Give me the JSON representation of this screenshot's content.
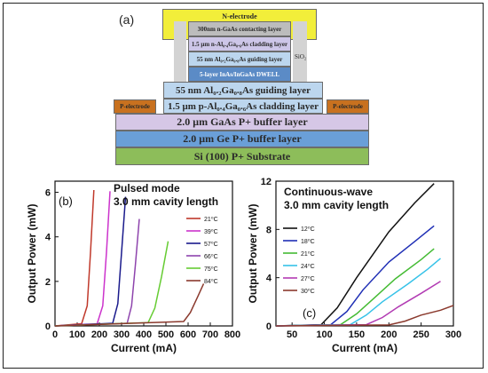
{
  "structure": {
    "panel_label": "(a)",
    "sio2_label": "SiO₂",
    "n_electrode": "N-electrode",
    "p_electrode_left": "P-electrode",
    "p_electrode_right": "P-electrode",
    "layers": {
      "contact": "300nm n-GaAs contacting layer",
      "n_clad": "1.5 μm n-Al₀.₄Ga₀.₆As cladding layer",
      "guide_top": "55 nm Al₀.₂Ga₀.₈As guiding layer",
      "dwell": "5-layer InAs/InGaAs DWELL",
      "guide_bottom": "55 nm Al₀.₂Ga₀.₈As guiding layer",
      "p_clad": "1.5 μm p-Al₀.₄Ga₀.₆As cladding layer",
      "gaas_buffer": "2.0 μm GaAs P+ buffer layer",
      "ge_buffer": "2.0 μm Ge P+ buffer layer",
      "substrate": "Si (100) P+ Substrate"
    },
    "colors": {
      "electrode": "#f2ee3a",
      "p_electrode": "#c8711f",
      "contact": "#bcbcbc",
      "n_clad": "#cdc6e8",
      "guide": "#bcd6ee",
      "dwell": "#5b8bc6",
      "gaas_buffer": "#d6c7e6",
      "ge_buffer": "#6a9fd8",
      "substrate": "#8dbd5a"
    }
  },
  "chart_data": [
    {
      "type": "line",
      "panel_label": "(b)",
      "title_lines": [
        "Pulsed mode",
        "3.0 mm cavity length"
      ],
      "xlabel": "Current (mA)",
      "ylabel": "Output Power (mW)",
      "xlim": [
        0,
        800
      ],
      "ylim": [
        0,
        6.5
      ],
      "xticks": [
        0,
        100,
        200,
        300,
        400,
        500,
        600,
        700,
        800
      ],
      "yticks": [
        0,
        2,
        4,
        6
      ],
      "legend_position": "right",
      "series": [
        {
          "name": "21⁰C",
          "color": "#c0392b",
          "x": [
            0,
            120,
            145,
            160,
            175
          ],
          "y": [
            0,
            0.1,
            0.9,
            3.3,
            6.1
          ]
        },
        {
          "name": "39⁰C",
          "color": "#cc33cc",
          "x": [
            0,
            190,
            215,
            232,
            248
          ],
          "y": [
            0,
            0.1,
            0.9,
            3.3,
            6.05
          ]
        },
        {
          "name": "57⁰C",
          "color": "#1a1a8c",
          "x": [
            0,
            260,
            283,
            300,
            318
          ],
          "y": [
            0,
            0.12,
            1.0,
            3.3,
            5.8
          ]
        },
        {
          "name": "66⁰C",
          "color": "#8e44ad",
          "x": [
            0,
            325,
            345,
            362,
            380
          ],
          "y": [
            0,
            0.12,
            0.9,
            2.7,
            4.8
          ]
        },
        {
          "name": "75⁰C",
          "color": "#66cc33",
          "x": [
            0,
            420,
            450,
            480,
            510
          ],
          "y": [
            0,
            0.15,
            0.8,
            2.2,
            3.8
          ]
        },
        {
          "name": "84⁰C",
          "color": "#8b3a2e",
          "x": [
            0,
            580,
            610,
            645,
            670
          ],
          "y": [
            0,
            0.2,
            0.6,
            1.35,
            1.9
          ]
        }
      ]
    },
    {
      "type": "line",
      "panel_label": "(c)",
      "title_lines": [
        "Continuous-wave",
        "3.0 mm cavity length"
      ],
      "xlabel": "Current (mA)",
      "ylabel": "Output Power (mW)",
      "xlim": [
        25,
        300
      ],
      "ylim": [
        0,
        12
      ],
      "xticks": [
        50,
        100,
        150,
        200,
        250,
        300
      ],
      "yticks": [
        0,
        4,
        8,
        12
      ],
      "legend_position": "left",
      "series": [
        {
          "name": "12⁰C",
          "color": "#111111",
          "x": [
            25,
            95,
            120,
            150,
            200,
            240,
            270
          ],
          "y": [
            0,
            0.1,
            1.5,
            4.0,
            7.8,
            10.2,
            11.8
          ]
        },
        {
          "name": "18⁰C",
          "color": "#1f2fb5",
          "x": [
            25,
            110,
            135,
            160,
            200,
            240,
            270
          ],
          "y": [
            0,
            0.1,
            1.2,
            3.0,
            5.3,
            7.0,
            8.3
          ]
        },
        {
          "name": "21⁰C",
          "color": "#44bb33",
          "x": [
            25,
            125,
            150,
            175,
            210,
            250,
            270
          ],
          "y": [
            0,
            0.1,
            1.0,
            2.2,
            3.9,
            5.5,
            6.4
          ]
        },
        {
          "name": "24⁰C",
          "color": "#36c2e8",
          "x": [
            25,
            140,
            165,
            190,
            230,
            260,
            280
          ],
          "y": [
            0,
            0.1,
            0.9,
            2.0,
            3.5,
            4.7,
            5.6
          ]
        },
        {
          "name": "27⁰C",
          "color": "#b23bb3",
          "x": [
            25,
            165,
            190,
            215,
            250,
            280
          ],
          "y": [
            0,
            0.1,
            0.7,
            1.6,
            2.7,
            3.7
          ]
        },
        {
          "name": "30⁰C",
          "color": "#8b3a2e",
          "x": [
            25,
            200,
            225,
            250,
            280,
            300
          ],
          "y": [
            0,
            0.08,
            0.4,
            0.9,
            1.3,
            1.7
          ]
        }
      ]
    }
  ]
}
